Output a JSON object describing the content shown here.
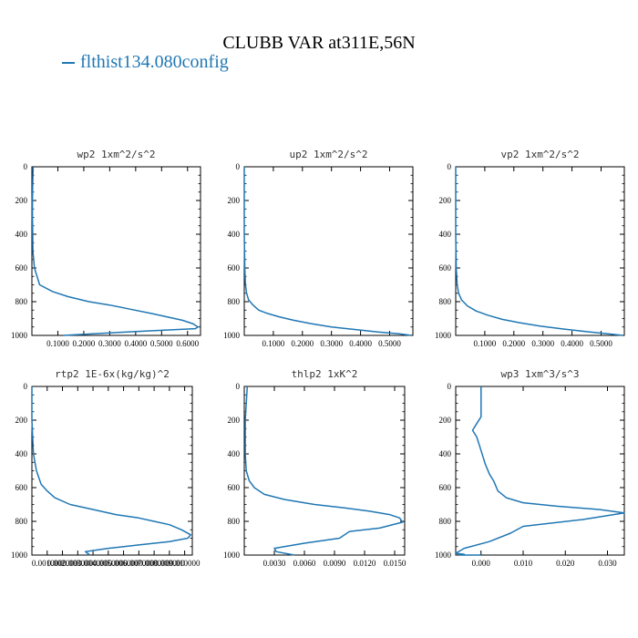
{
  "page": {
    "title": "CLUBB VAR at311E,56N",
    "legend_label": "flthist134.080config",
    "line_color": "#1f77b4"
  },
  "chart_data": [
    {
      "type": "line",
      "title": "wp2  1xm^2/s^2",
      "ylim": [
        1000,
        0
      ],
      "y_ticks": [
        "0",
        "200",
        "400",
        "600",
        "800",
        "1000"
      ],
      "xlim": [
        0,
        0.65
      ],
      "x_ticks": [
        {
          "v": 0.1,
          "label": "0.1000"
        },
        {
          "v": 0.2,
          "label": "0.2000"
        },
        {
          "v": 0.3,
          "label": "0.3000"
        },
        {
          "v": 0.4,
          "label": "0.4000"
        },
        {
          "v": 0.5,
          "label": "0.5000"
        },
        {
          "v": 0.6,
          "label": "0.6000"
        }
      ],
      "x": [
        0.005,
        0.003,
        0.002,
        0.002,
        0.003,
        0.004,
        0.01,
        0.03,
        0.08,
        0.14,
        0.22,
        0.3,
        0.38,
        0.46,
        0.52,
        0.58,
        0.62,
        0.64,
        0.63,
        0.5,
        0.3,
        0.12
      ],
      "y": [
        0,
        100,
        200,
        300,
        400,
        500,
        600,
        700,
        740,
        770,
        800,
        820,
        845,
        870,
        890,
        910,
        930,
        950,
        960,
        970,
        985,
        1000
      ]
    },
    {
      "type": "line",
      "title": "up2  1xm^2/s^2",
      "ylim": [
        1000,
        0
      ],
      "y_ticks": [
        "0",
        "200",
        "400",
        "600",
        "800",
        "1000"
      ],
      "xlim": [
        0,
        0.58
      ],
      "x_ticks": [
        {
          "v": 0.1,
          "label": "0.1000"
        },
        {
          "v": 0.2,
          "label": "0.2000"
        },
        {
          "v": 0.3,
          "label": "0.3000"
        },
        {
          "v": 0.4,
          "label": "0.4000"
        },
        {
          "v": 0.5,
          "label": "0.5000"
        }
      ],
      "x": [
        0.0,
        0.0,
        0.0,
        0.002,
        0.004,
        0.008,
        0.015,
        0.03,
        0.05,
        0.08,
        0.12,
        0.17,
        0.23,
        0.3,
        0.38,
        0.46,
        0.53,
        0.575
      ],
      "y": [
        0,
        200,
        400,
        600,
        700,
        750,
        790,
        820,
        850,
        870,
        890,
        910,
        930,
        950,
        965,
        980,
        990,
        1000
      ]
    },
    {
      "type": "line",
      "title": "vp2  1xm^2/s^2",
      "ylim": [
        1000,
        0
      ],
      "y_ticks": [
        "0",
        "200",
        "400",
        "600",
        "800",
        "1000"
      ],
      "xlim": [
        0,
        0.58
      ],
      "x_ticks": [
        {
          "v": 0.1,
          "label": "0.1000"
        },
        {
          "v": 0.2,
          "label": "0.2000"
        },
        {
          "v": 0.3,
          "label": "0.3000"
        },
        {
          "v": 0.4,
          "label": "0.4000"
        },
        {
          "v": 0.5,
          "label": "0.5000"
        }
      ],
      "x": [
        0.0,
        0.0,
        0.0,
        0.002,
        0.005,
        0.01,
        0.02,
        0.04,
        0.07,
        0.11,
        0.16,
        0.22,
        0.29,
        0.37,
        0.45,
        0.52,
        0.575
      ],
      "y": [
        0,
        200,
        400,
        600,
        700,
        750,
        790,
        825,
        855,
        880,
        905,
        925,
        945,
        962,
        978,
        990,
        1000
      ]
    },
    {
      "type": "line",
      "title": "rtp2  1E-6x(kg/kg)^2",
      "ylim": [
        1000,
        0
      ],
      "y_ticks": [
        "0",
        "200",
        "400",
        "600",
        "800",
        "1000"
      ],
      "xlim": [
        0,
        0.0105
      ],
      "x_ticks": [
        {
          "v": 0.001,
          "label": "0.001000"
        },
        {
          "v": 0.002,
          "label": "0.002000"
        },
        {
          "v": 0.003,
          "label": "0.003000"
        },
        {
          "v": 0.004,
          "label": "0.004000"
        },
        {
          "v": 0.005,
          "label": "0.005000"
        },
        {
          "v": 0.006,
          "label": "0.006000"
        },
        {
          "v": 0.007,
          "label": "0.007000"
        },
        {
          "v": 0.008,
          "label": "0.008000"
        },
        {
          "v": 0.009,
          "label": "0.009000"
        },
        {
          "v": 0.01,
          "label": "0.010000"
        }
      ],
      "x": [
        0.0,
        0.0,
        0.0001,
        0.0003,
        0.0006,
        0.001,
        0.0015,
        0.0025,
        0.004,
        0.0055,
        0.007,
        0.008,
        0.009,
        0.0098,
        0.0104,
        0.0102,
        0.009,
        0.007,
        0.005,
        0.0035,
        0.0038
      ],
      "y": [
        0,
        200,
        400,
        500,
        580,
        620,
        660,
        700,
        730,
        760,
        780,
        800,
        820,
        850,
        880,
        900,
        920,
        940,
        960,
        980,
        1000
      ]
    },
    {
      "type": "line",
      "title": "thlp2  1xK^2",
      "ylim": [
        1000,
        0
      ],
      "y_ticks": [
        "0",
        "200",
        "400",
        "600",
        "800",
        "1000"
      ],
      "xlim": [
        0,
        0.016
      ],
      "x_ticks": [
        {
          "v": 0.003,
          "label": "0.0030"
        },
        {
          "v": 0.006,
          "label": "0.0060"
        },
        {
          "v": 0.009,
          "label": "0.0090"
        },
        {
          "v": 0.012,
          "label": "0.0120"
        },
        {
          "v": 0.015,
          "label": "0.0150"
        }
      ],
      "x": [
        0.0003,
        0.0001,
        0.0001,
        0.0002,
        0.0005,
        0.001,
        0.002,
        0.004,
        0.007,
        0.01,
        0.0125,
        0.0145,
        0.0155,
        0.0158,
        0.0135,
        0.0105,
        0.0095,
        0.006,
        0.003,
        0.0032,
        0.005
      ],
      "y": [
        0,
        200,
        400,
        500,
        560,
        600,
        640,
        670,
        700,
        720,
        740,
        760,
        780,
        805,
        840,
        860,
        900,
        930,
        960,
        980,
        1000
      ]
    },
    {
      "type": "line",
      "title": "wp3  1xm^3/s^3",
      "ylim": [
        1000,
        0
      ],
      "y_ticks": [
        "0",
        "200",
        "400",
        "600",
        "800",
        "1000"
      ],
      "xlim": [
        -0.006,
        0.034
      ],
      "x_ticks": [
        {
          "v": 0.0,
          "label": "0.000"
        },
        {
          "v": 0.01,
          "label": "0.010"
        },
        {
          "v": 0.02,
          "label": "0.020"
        },
        {
          "v": 0.03,
          "label": "0.030"
        }
      ],
      "x": [
        0.0,
        0.0,
        0.0,
        -0.001,
        -0.002,
        -0.001,
        0.0,
        0.001,
        0.002,
        0.003,
        0.004,
        0.006,
        0.01,
        0.018,
        0.028,
        0.034,
        0.024,
        0.01,
        0.007,
        0.002,
        -0.004,
        -0.006,
        -0.004,
        -0.005,
        0.0
      ],
      "y": [
        0,
        100,
        180,
        220,
        260,
        300,
        380,
        460,
        520,
        560,
        620,
        660,
        690,
        710,
        730,
        750,
        790,
        830,
        870,
        920,
        960,
        990,
        995,
        1000,
        1000
      ]
    }
  ]
}
